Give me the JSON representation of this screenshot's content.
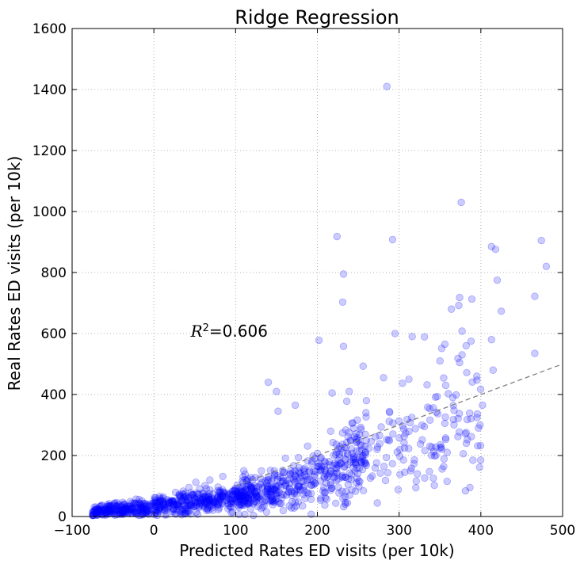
{
  "chart_data": {
    "type": "scatter",
    "title": "Ridge Regression",
    "xlabel": "Predicted Rates ED visits (per 10k)",
    "ylabel": "Real Rates ED visits (per 10k)",
    "xlim": [
      -100,
      500
    ],
    "ylim": [
      0,
      1600
    ],
    "xticks": [
      "−100",
      "0",
      "100",
      "200",
      "300",
      "400",
      "500"
    ],
    "xtick_values": [
      -100,
      0,
      100,
      200,
      300,
      400,
      500
    ],
    "yticks": [
      "0",
      "200",
      "400",
      "600",
      "800",
      "1000",
      "1200",
      "1400",
      "1600"
    ],
    "ytick_values": [
      0,
      200,
      400,
      600,
      800,
      1000,
      1200,
      1400,
      1600
    ],
    "grid": true,
    "annotation": {
      "label": "R",
      "sup": "2",
      "value": "=0.606",
      "x": 45,
      "y": 590
    },
    "reference_line": {
      "x": [
        100,
        500
      ],
      "y": [
        100,
        500
      ],
      "style": "dashed",
      "color": "#808080"
    },
    "point_color": "#0000ff",
    "point_opacity": 0.2,
    "outliers": [
      [
        285,
        1410
      ],
      [
        376,
        1030
      ],
      [
        224,
        918
      ],
      [
        292,
        908
      ],
      [
        232,
        795
      ],
      [
        474,
        905
      ],
      [
        480,
        820
      ],
      [
        413,
        885
      ],
      [
        418,
        876
      ],
      [
        420,
        775
      ],
      [
        466,
        722
      ],
      [
        425,
        673
      ],
      [
        231,
        703
      ],
      [
        364,
        680
      ],
      [
        374,
        718
      ],
      [
        389,
        713
      ],
      [
        373,
        692
      ],
      [
        295,
        600
      ],
      [
        377,
        608
      ],
      [
        202,
        578
      ],
      [
        232,
        558
      ],
      [
        388,
        575
      ],
      [
        316,
        590
      ],
      [
        466,
        535
      ],
      [
        331,
        589
      ],
      [
        413,
        580
      ],
      [
        356,
        565
      ],
      [
        382,
        560
      ],
      [
        350,
        510
      ],
      [
        374,
        505
      ],
      [
        377,
        530
      ],
      [
        256,
        493
      ],
      [
        239,
        410
      ],
      [
        218,
        405
      ],
      [
        281,
        455
      ],
      [
        312,
        450
      ],
      [
        395,
        460
      ],
      [
        415,
        480
      ],
      [
        357,
        430
      ],
      [
        150,
        410
      ],
      [
        140,
        440
      ],
      [
        173,
        365
      ],
      [
        152,
        345
      ],
      [
        260,
        380
      ],
      [
        402,
        365
      ],
      [
        236,
        378
      ],
      [
        399,
        300
      ],
      [
        397,
        290
      ],
      [
        372,
        262
      ],
      [
        328,
        300
      ],
      [
        345,
        228
      ],
      [
        314,
        150
      ]
    ],
    "series": [
      {
        "name": "",
        "x_range": [
          -80,
          400
        ],
        "trend": {
          "x": [
            -80,
            0,
            100,
            200,
            300,
            400
          ],
          "y": [
            15,
            30,
            65,
            125,
            230,
            340
          ]
        },
        "n_points": 1150,
        "seed": 7
      }
    ]
  }
}
